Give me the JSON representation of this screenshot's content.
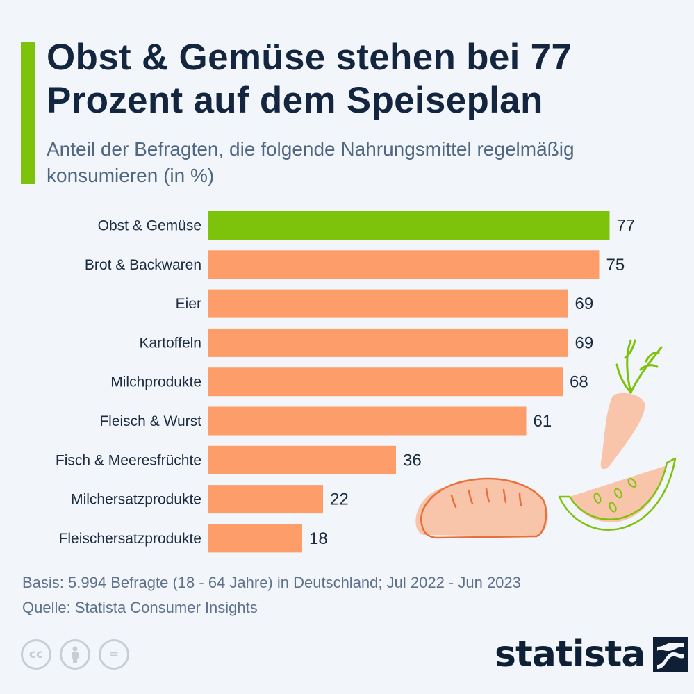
{
  "title": "Obst & Gemüse stehen bei 77 Prozent auf dem Speiseplan",
  "subtitle": "Anteil der Befragten, die folgende Nahrungsmittel regelmäßig konsumieren (in %)",
  "colors": {
    "accent": "#7dc20b",
    "highlight_bar": "#7dc20b",
    "bar": "#fd9e6a",
    "title": "#14263f"
  },
  "chart_data": {
    "type": "bar",
    "orientation": "horizontal",
    "categories": [
      "Obst & Gemüse",
      "Brot & Backwaren",
      "Eier",
      "Kartoffeln",
      "Milchprodukte",
      "Fleisch & Wurst",
      "Fisch & Meeresfrüchte",
      "Milchersatzprodukte",
      "Fleischersatzprodukte"
    ],
    "values": [
      77,
      75,
      69,
      69,
      68,
      61,
      36,
      22,
      18
    ],
    "highlight_index": 0,
    "xlim": [
      0,
      100
    ],
    "grid": false,
    "data_labels": true
  },
  "illustration": [
    "carrot-icon",
    "bread-icon",
    "melon-icon"
  ],
  "footer": {
    "basis": "Basis: 5.994 Befragte (18 - 64 Jahre) in Deutschland; Jul 2022 - Jun 2023",
    "source": "Quelle: Statista Consumer Insights"
  },
  "license_icons": [
    "cc-icon",
    "attribution-icon",
    "no-derivatives-icon"
  ],
  "license_glyphs": {
    "cc": "cc",
    "nd": "="
  },
  "brand": "statista"
}
